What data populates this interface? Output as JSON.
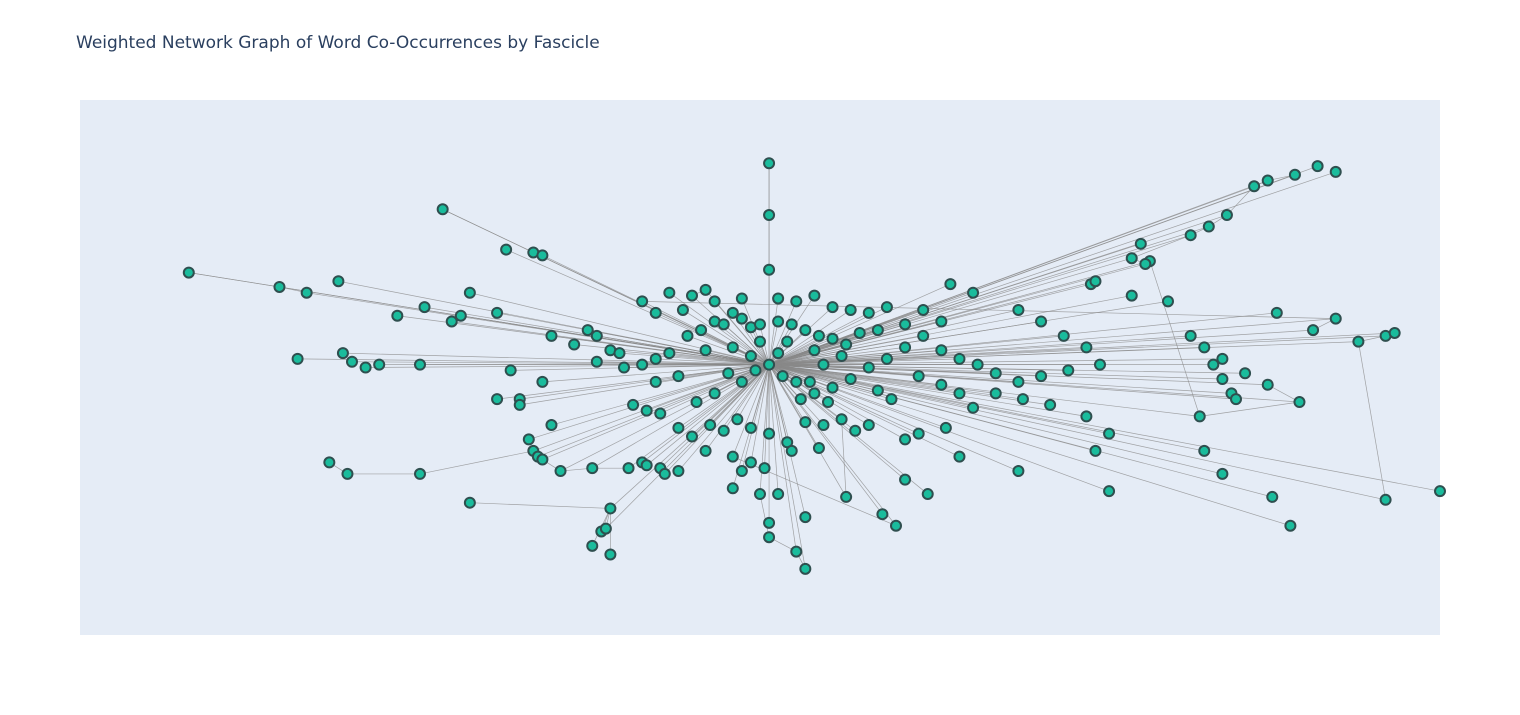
{
  "chart_data": {
    "type": "network",
    "title": "Weighted Network Graph of Word Co-Occurrences by Fascicle",
    "xlabel": "",
    "ylabel": "",
    "xlim": [
      -1.52,
      1.48
    ],
    "ylim": [
      -0.94,
      0.92
    ],
    "grid": false,
    "legend": "none",
    "node_color": "#1abc9c",
    "node_outline": "#2f4f4f",
    "edge_color": "#888888",
    "plot_bg": "#e5ecf6",
    "hub": [
      0.0,
      0.0
    ],
    "nodes": [
      [
        0.0,
        0.7
      ],
      [
        0.0,
        0.52
      ],
      [
        0.0,
        0.33
      ],
      [
        -0.72,
        0.54
      ],
      [
        -0.58,
        0.4
      ],
      [
        -1.28,
        0.32
      ],
      [
        -1.08,
        0.27
      ],
      [
        -1.02,
        0.25
      ],
      [
        -0.95,
        0.29
      ],
      [
        -0.82,
        0.17
      ],
      [
        -0.76,
        0.2
      ],
      [
        -0.7,
        0.15
      ],
      [
        -0.68,
        0.17
      ],
      [
        -0.6,
        0.18
      ],
      [
        -0.52,
        0.39
      ],
      [
        -0.5,
        0.38
      ],
      [
        -0.66,
        0.25
      ],
      [
        -0.48,
        0.1
      ],
      [
        -0.43,
        0.07
      ],
      [
        -0.38,
        0.01
      ],
      [
        -1.04,
        0.02
      ],
      [
        -0.94,
        0.04
      ],
      [
        -0.92,
        0.01
      ],
      [
        -0.89,
        -0.01
      ],
      [
        -0.86,
        0.0
      ],
      [
        -0.77,
        0.0
      ],
      [
        -0.57,
        -0.02
      ],
      [
        -0.6,
        -0.12
      ],
      [
        -0.55,
        -0.12
      ],
      [
        -0.5,
        -0.06
      ],
      [
        -0.55,
        -0.14
      ],
      [
        -0.48,
        -0.21
      ],
      [
        -0.97,
        -0.34
      ],
      [
        -0.93,
        -0.38
      ],
      [
        -0.77,
        -0.38
      ],
      [
        -0.66,
        -0.48
      ],
      [
        -0.52,
        -0.3
      ],
      [
        -0.51,
        -0.32
      ],
      [
        -0.53,
        -0.26
      ],
      [
        -0.5,
        -0.33
      ],
      [
        -0.46,
        -0.37
      ],
      [
        -0.39,
        -0.36
      ],
      [
        -0.31,
        -0.36
      ],
      [
        -0.28,
        -0.34
      ],
      [
        -0.24,
        -0.36
      ],
      [
        -0.2,
        -0.37
      ],
      [
        -0.35,
        -0.5
      ],
      [
        -0.37,
        -0.58
      ],
      [
        -0.39,
        -0.63
      ],
      [
        -0.35,
        -0.66
      ],
      [
        -0.36,
        -0.57
      ],
      [
        -0.4,
        0.12
      ],
      [
        -0.38,
        0.1
      ],
      [
        -0.35,
        0.05
      ],
      [
        -0.33,
        0.04
      ],
      [
        -0.28,
        0.0
      ],
      [
        -0.25,
        0.02
      ],
      [
        -0.22,
        0.04
      ],
      [
        -0.18,
        0.1
      ],
      [
        -0.15,
        0.12
      ],
      [
        -0.12,
        0.15
      ],
      [
        -0.1,
        0.14
      ],
      [
        -0.08,
        0.18
      ],
      [
        -0.06,
        0.16
      ],
      [
        -0.04,
        0.13
      ],
      [
        -0.02,
        0.14
      ],
      [
        0.02,
        0.15
      ],
      [
        0.05,
        0.14
      ],
      [
        0.08,
        0.12
      ],
      [
        0.11,
        0.1
      ],
      [
        0.14,
        0.09
      ],
      [
        0.17,
        0.07
      ],
      [
        -0.3,
        -0.14
      ],
      [
        -0.27,
        -0.16
      ],
      [
        -0.24,
        -0.17
      ],
      [
        -0.2,
        -0.22
      ],
      [
        -0.17,
        -0.25
      ],
      [
        -0.13,
        -0.21
      ],
      [
        -0.1,
        -0.23
      ],
      [
        -0.07,
        -0.19
      ],
      [
        -0.04,
        -0.22
      ],
      [
        0.0,
        -0.24
      ],
      [
        0.04,
        -0.27
      ],
      [
        0.08,
        -0.2
      ],
      [
        0.12,
        -0.21
      ],
      [
        0.16,
        -0.19
      ],
      [
        0.19,
        -0.23
      ],
      [
        0.22,
        -0.21
      ],
      [
        -0.27,
        -0.35
      ],
      [
        -0.23,
        -0.38
      ],
      [
        -0.14,
        -0.3
      ],
      [
        -0.08,
        -0.32
      ],
      [
        -0.04,
        -0.34
      ],
      [
        -0.01,
        -0.36
      ],
      [
        0.05,
        -0.3
      ],
      [
        0.11,
        -0.29
      ],
      [
        -0.08,
        -0.43
      ],
      [
        -0.06,
        -0.37
      ],
      [
        0.02,
        -0.45
      ],
      [
        0.08,
        -0.53
      ],
      [
        0.17,
        -0.46
      ],
      [
        0.25,
        -0.52
      ],
      [
        0.28,
        -0.56
      ],
      [
        0.0,
        -0.55
      ],
      [
        -0.02,
        -0.45
      ],
      [
        0.0,
        -0.6
      ],
      [
        0.06,
        -0.65
      ],
      [
        0.08,
        -0.71
      ],
      [
        0.26,
        0.2
      ],
      [
        0.3,
        0.14
      ],
      [
        0.34,
        0.1
      ],
      [
        0.38,
        0.05
      ],
      [
        0.42,
        0.02
      ],
      [
        0.46,
        0.0
      ],
      [
        0.5,
        -0.03
      ],
      [
        0.3,
        0.06
      ],
      [
        0.26,
        0.02
      ],
      [
        0.22,
        -0.01
      ],
      [
        0.18,
        -0.05
      ],
      [
        0.14,
        -0.08
      ],
      [
        0.1,
        -0.1
      ],
      [
        0.07,
        -0.12
      ],
      [
        0.33,
        -0.04
      ],
      [
        0.38,
        -0.07
      ],
      [
        0.42,
        -0.1
      ],
      [
        0.27,
        -0.12
      ],
      [
        0.24,
        -0.09
      ],
      [
        0.4,
        0.28
      ],
      [
        0.45,
        0.25
      ],
      [
        0.55,
        0.19
      ],
      [
        0.6,
        0.15
      ],
      [
        0.65,
        0.1
      ],
      [
        0.7,
        0.06
      ],
      [
        0.73,
        0.0
      ],
      [
        0.66,
        -0.02
      ],
      [
        0.6,
        -0.04
      ],
      [
        0.55,
        -0.06
      ],
      [
        0.5,
        -0.1
      ],
      [
        0.45,
        -0.15
      ],
      [
        0.39,
        -0.22
      ],
      [
        0.33,
        -0.24
      ],
      [
        0.3,
        -0.26
      ],
      [
        0.42,
        -0.32
      ],
      [
        0.56,
        -0.12
      ],
      [
        0.62,
        -0.14
      ],
      [
        0.7,
        -0.18
      ],
      [
        0.75,
        -0.24
      ],
      [
        0.72,
        -0.3
      ],
      [
        0.55,
        -0.37
      ],
      [
        0.3,
        -0.4
      ],
      [
        0.35,
        -0.45
      ],
      [
        0.71,
        0.28
      ],
      [
        0.72,
        0.29
      ],
      [
        0.8,
        0.24
      ],
      [
        0.88,
        0.22
      ],
      [
        0.93,
        0.1
      ],
      [
        0.96,
        0.06
      ],
      [
        0.98,
        0.0
      ],
      [
        1.0,
        0.02
      ],
      [
        1.05,
        -0.03
      ],
      [
        1.0,
        -0.05
      ],
      [
        1.02,
        -0.1
      ],
      [
        1.03,
        -0.12
      ],
      [
        1.1,
        -0.07
      ],
      [
        1.17,
        -0.13
      ],
      [
        0.95,
        -0.18
      ],
      [
        0.84,
        0.36
      ],
      [
        0.83,
        0.35
      ],
      [
        0.8,
        0.37
      ],
      [
        0.93,
        0.45
      ],
      [
        0.97,
        0.48
      ],
      [
        1.01,
        0.52
      ],
      [
        1.07,
        0.62
      ],
      [
        1.1,
        0.64
      ],
      [
        1.16,
        0.66
      ],
      [
        1.21,
        0.69
      ],
      [
        1.25,
        0.67
      ],
      [
        0.82,
        0.42
      ],
      [
        0.96,
        -0.3
      ],
      [
        0.75,
        -0.44
      ],
      [
        1.0,
        -0.38
      ],
      [
        1.11,
        -0.46
      ],
      [
        1.15,
        -0.56
      ],
      [
        1.36,
        -0.47
      ],
      [
        1.3,
        0.08
      ],
      [
        1.36,
        0.1
      ],
      [
        1.38,
        0.11
      ],
      [
        1.48,
        -0.44
      ],
      [
        1.12,
        0.18
      ],
      [
        1.2,
        0.12
      ],
      [
        1.25,
        0.16
      ],
      [
        -0.28,
        0.22
      ],
      [
        -0.22,
        0.25
      ],
      [
        -0.17,
        0.24
      ],
      [
        -0.14,
        0.26
      ],
      [
        -0.12,
        0.22
      ],
      [
        -0.19,
        0.19
      ],
      [
        -0.25,
        0.18
      ],
      [
        -0.06,
        0.23
      ],
      [
        0.02,
        0.23
      ],
      [
        0.06,
        0.22
      ],
      [
        0.1,
        0.24
      ],
      [
        0.14,
        0.2
      ],
      [
        0.18,
        0.19
      ],
      [
        0.22,
        0.18
      ],
      [
        -0.08,
        0.06
      ],
      [
        -0.14,
        0.05
      ],
      [
        0.1,
        0.05
      ],
      [
        0.16,
        0.03
      ],
      [
        0.06,
        -0.06
      ],
      [
        -0.06,
        -0.06
      ],
      [
        -0.02,
        0.08
      ],
      [
        0.04,
        0.08
      ],
      [
        0.12,
        0.0
      ],
      [
        -0.12,
        -0.1
      ],
      [
        -0.16,
        -0.13
      ],
      [
        -0.09,
        -0.03
      ],
      [
        -0.03,
        -0.02
      ],
      [
        0.03,
        -0.04
      ],
      [
        0.09,
        -0.06
      ],
      [
        0.13,
        -0.13
      ],
      [
        -0.2,
        -0.04
      ],
      [
        -0.25,
        -0.06
      ],
      [
        -0.32,
        -0.01
      ],
      [
        0.2,
        0.11
      ],
      [
        0.24,
        0.12
      ],
      [
        -0.04,
        0.03
      ],
      [
        0.02,
        0.04
      ],
      [
        0.34,
        0.19
      ],
      [
        0.38,
        0.15
      ]
    ],
    "edges_from_hub": [
      0,
      2,
      3,
      4,
      5,
      6,
      7,
      8,
      9,
      10,
      11,
      12,
      13,
      14,
      15,
      16,
      17,
      18,
      19,
      20,
      21,
      22,
      23,
      24,
      25,
      26,
      27,
      28,
      29,
      30,
      31,
      36,
      37,
      38,
      39,
      40,
      41,
      42,
      43,
      44,
      45,
      46,
      50,
      51,
      52,
      53,
      54,
      55,
      56,
      57,
      58,
      59,
      60,
      61,
      62,
      63,
      64,
      65,
      66,
      67,
      68,
      69,
      70,
      71,
      72,
      73,
      74,
      75,
      76,
      77,
      78,
      79,
      80,
      81,
      82,
      83,
      84,
      85,
      86,
      87,
      88,
      89,
      90,
      91,
      92,
      93,
      94,
      95,
      96,
      97,
      98,
      99,
      100,
      101,
      102,
      103,
      104,
      106,
      107,
      108,
      109,
      110,
      111,
      112,
      113,
      114,
      115,
      116,
      117,
      118,
      119,
      120,
      121,
      122,
      123,
      124,
      125,
      126,
      127,
      128,
      129,
      130,
      131,
      132,
      133,
      134,
      135,
      136,
      137,
      138,
      139,
      140,
      141,
      142,
      143,
      144,
      145,
      146,
      147,
      148,
      149,
      150,
      151,
      152,
      153,
      154,
      155,
      156,
      157,
      158,
      159,
      160,
      161,
      162,
      163,
      164,
      165,
      166,
      167,
      168,
      169,
      170,
      171,
      172,
      173,
      174,
      175,
      176,
      177,
      178,
      179,
      180,
      181,
      182,
      183,
      184,
      185,
      186,
      187,
      188,
      189,
      190,
      191,
      192,
      193,
      194,
      195,
      196,
      197,
      198,
      199,
      200,
      201,
      202,
      203,
      204,
      205,
      206,
      207,
      208,
      209,
      210,
      211,
      212,
      213,
      214,
      215,
      216,
      217,
      218,
      219,
      220,
      221,
      222,
      223,
      224,
      225,
      226,
      227,
      228,
      229,
      230,
      231,
      232,
      233,
      234,
      235,
      236,
      237,
      238,
      239
    ],
    "edges_extra": [
      [
        0,
        1
      ],
      [
        1,
        2
      ],
      [
        5,
        6
      ],
      [
        6,
        7
      ],
      [
        3,
        14
      ],
      [
        32,
        33
      ],
      [
        33,
        34
      ],
      [
        34,
        36
      ],
      [
        35,
        46
      ],
      [
        46,
        47
      ],
      [
        46,
        48
      ],
      [
        46,
        49
      ],
      [
        46,
        50
      ],
      [
        104,
        105
      ],
      [
        105,
        106
      ],
      [
        106,
        107
      ],
      [
        163,
        164
      ],
      [
        164,
        165
      ],
      [
        165,
        166
      ],
      [
        166,
        167
      ],
      [
        167,
        168
      ],
      [
        168,
        169
      ],
      [
        169,
        170
      ],
      [
        170,
        171
      ],
      [
        171,
        172
      ],
      [
        172,
        173
      ],
      [
        173,
        174
      ],
      [
        85,
        100
      ],
      [
        91,
        102
      ],
      [
        14,
        15
      ],
      [
        39,
        40
      ],
      [
        40,
        41
      ],
      [
        41,
        42
      ],
      [
        189,
        190
      ],
      [
        190,
        191
      ],
      [
        193,
        194
      ],
      [
        183,
        184
      ],
      [
        184,
        185
      ]
    ]
  }
}
